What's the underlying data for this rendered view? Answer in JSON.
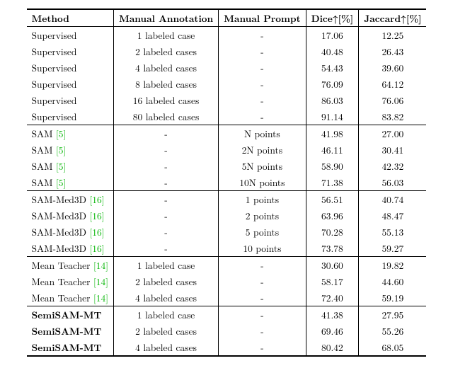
{
  "headers": {
    "method": "Method",
    "manual_annotation": "Manual Annotation",
    "manual_prompt": "Manual Prompt",
    "dice": "Dice↑[%]",
    "jaccard": "Jaccard↑[%]"
  },
  "cite_color": "#00b400",
  "groups": [
    {
      "rows": [
        {
          "method": "Supervised",
          "cite": "",
          "ma": "1 labeled case",
          "mp": "-",
          "dice": "17.06",
          "jac": "12.25",
          "bold": false
        },
        {
          "method": "Supervised",
          "cite": "",
          "ma": "2 labeled cases",
          "mp": "-",
          "dice": "40.48",
          "jac": "26.43",
          "bold": false
        },
        {
          "method": "Supervised",
          "cite": "",
          "ma": "4 labeled cases",
          "mp": "-",
          "dice": "54.43",
          "jac": "39.60",
          "bold": false
        },
        {
          "method": "Supervised",
          "cite": "",
          "ma": "8 labeled cases",
          "mp": "-",
          "dice": "76.09",
          "jac": "64.12",
          "bold": false
        },
        {
          "method": "Supervised",
          "cite": "",
          "ma": "16 labeled cases",
          "mp": "-",
          "dice": "86.03",
          "jac": "76.06",
          "bold": false
        },
        {
          "method": "Supervised",
          "cite": "",
          "ma": "80 labeled cases",
          "mp": "-",
          "dice": "91.14",
          "jac": "83.82",
          "bold": false
        }
      ]
    },
    {
      "rows": [
        {
          "method": "SAM",
          "cite": "[5]",
          "ma": "-",
          "mp": "N points",
          "dice": "41.98",
          "jac": "27.00",
          "bold": false
        },
        {
          "method": "SAM",
          "cite": "[5]",
          "ma": "-",
          "mp": "2N points",
          "dice": "46.11",
          "jac": "30.41",
          "bold": false
        },
        {
          "method": "SAM",
          "cite": "[5]",
          "ma": "-",
          "mp": "5N points",
          "dice": "58.90",
          "jac": "42.32",
          "bold": false
        },
        {
          "method": "SAM",
          "cite": "[5]",
          "ma": "-",
          "mp": "10N points",
          "dice": "71.38",
          "jac": "56.03",
          "bold": false
        }
      ]
    },
    {
      "rows": [
        {
          "method": "SAM-Med3D",
          "cite": "[16]",
          "ma": "-",
          "mp": "1 points",
          "dice": "56.51",
          "jac": "40.74",
          "bold": false
        },
        {
          "method": "SAM-Med3D",
          "cite": "[16]",
          "ma": "-",
          "mp": "2 points",
          "dice": "63.96",
          "jac": "48.47",
          "bold": false
        },
        {
          "method": "SAM-Med3D",
          "cite": "[16]",
          "ma": "-",
          "mp": "5 points",
          "dice": "70.28",
          "jac": "55.13",
          "bold": false
        },
        {
          "method": "SAM-Med3D",
          "cite": "[16]",
          "ma": "-",
          "mp": "10 points",
          "dice": "73.78",
          "jac": "59.27",
          "bold": false
        }
      ]
    },
    {
      "rows": [
        {
          "method": "Mean Teacher",
          "cite": "[14]",
          "ma": "1 labeled case",
          "mp": "-",
          "dice": "30.60",
          "jac": "19.82",
          "bold": false
        },
        {
          "method": "Mean Teacher",
          "cite": "[14]",
          "ma": "2 labeled cases",
          "mp": "-",
          "dice": "58.17",
          "jac": "44.60",
          "bold": false
        },
        {
          "method": "Mean Teacher",
          "cite": "[14]",
          "ma": "4 labeled cases",
          "mp": "-",
          "dice": "72.40",
          "jac": "59.19",
          "bold": false
        }
      ]
    },
    {
      "rows": [
        {
          "method": "SemiSAM-MT",
          "cite": "",
          "ma": "1 labeled case",
          "mp": "-",
          "dice": "41.38",
          "jac": "27.95",
          "bold": true
        },
        {
          "method": "SemiSAM-MT",
          "cite": "",
          "ma": "2 labeled cases",
          "mp": "-",
          "dice": "69.46",
          "jac": "55.26",
          "bold": true
        },
        {
          "method": "SemiSAM-MT",
          "cite": "",
          "ma": "4 labeled cases",
          "mp": "-",
          "dice": "80.42",
          "jac": "68.05",
          "bold": true
        }
      ]
    }
  ]
}
